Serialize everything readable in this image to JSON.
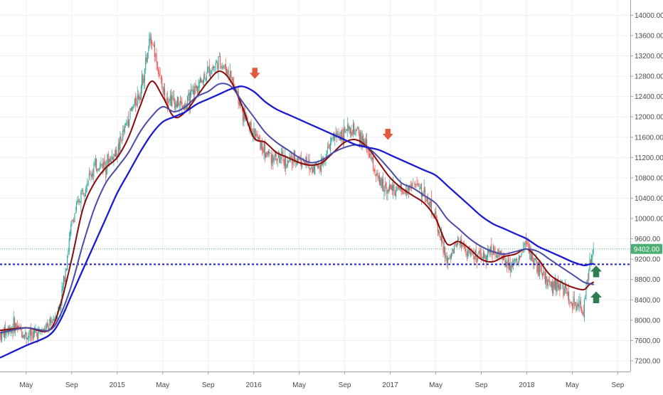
{
  "chart_data": {
    "type": "candlestick",
    "x_ticks": [
      {
        "label": "May",
        "x": 1.5
      },
      {
        "label": "Sep",
        "x": 5.5
      },
      {
        "label": "2015",
        "x": 9.5
      },
      {
        "label": "May",
        "x": 13.5
      },
      {
        "label": "Sep",
        "x": 17.5
      },
      {
        "label": "2016",
        "x": 21.5
      },
      {
        "label": "May",
        "x": 25.5
      },
      {
        "label": "Sep",
        "x": 29.5
      },
      {
        "label": "2017",
        "x": 33.5
      },
      {
        "label": "May",
        "x": 37.5
      },
      {
        "label": "Sep",
        "x": 41.5
      },
      {
        "label": "2018",
        "x": 45.5
      },
      {
        "label": "May",
        "x": 49.5
      },
      {
        "label": "Sep",
        "x": 53.5
      }
    ],
    "x_range": [
      -0.8,
      54.6
    ],
    "y_ticks": [
      7200,
      7600,
      8000,
      8400,
      8800,
      9200,
      9600,
      10000,
      10400,
      10800,
      11200,
      11600,
      12000,
      12400,
      12800,
      13200,
      13600,
      14000
    ],
    "y_tick_labels": [
      "7200.00",
      "7600.00",
      "8000.00",
      "8400.00",
      "8800.00",
      "9200.00",
      "9600.00",
      "10000.00",
      "10400.00",
      "10800.00",
      "11200.00",
      "11600.00",
      "12000.00",
      "12400.00",
      "12800.00",
      "13200.00",
      "13600.00",
      "14000.00"
    ],
    "y_range": [
      6990,
      14300
    ],
    "price_path": [
      [
        -0.8,
        7700
      ],
      [
        0.5,
        7900
      ],
      [
        1.5,
        7700
      ],
      [
        2.5,
        7750
      ],
      [
        3.5,
        7850
      ],
      [
        4.5,
        8300
      ],
      [
        5.5,
        9900
      ],
      [
        6.5,
        10600
      ],
      [
        7.5,
        11000
      ],
      [
        8.5,
        11100
      ],
      [
        9.5,
        11300
      ],
      [
        10.5,
        12000
      ],
      [
        11.5,
        12500
      ],
      [
        12.5,
        13600
      ],
      [
        13.5,
        12500
      ],
      [
        14.5,
        12300
      ],
      [
        15.5,
        12200
      ],
      [
        16.5,
        12600
      ],
      [
        17.5,
        12900
      ],
      [
        18.5,
        13100
      ],
      [
        19.5,
        12800
      ],
      [
        20.5,
        12100
      ],
      [
        21.5,
        11700
      ],
      [
        22.5,
        11300
      ],
      [
        23.5,
        11200
      ],
      [
        24.5,
        11100
      ],
      [
        25.5,
        11200
      ],
      [
        26.5,
        11000
      ],
      [
        27.5,
        11100
      ],
      [
        28.5,
        11600
      ],
      [
        29.5,
        11700
      ],
      [
        30.5,
        11700
      ],
      [
        31.5,
        11400
      ],
      [
        32.5,
        10700
      ],
      [
        33.5,
        10600
      ],
      [
        34.5,
        10500
      ],
      [
        35.5,
        10700
      ],
      [
        36.5,
        10500
      ],
      [
        37.5,
        10000
      ],
      [
        38.5,
        9100
      ],
      [
        39.5,
        9600
      ],
      [
        40.5,
        9300
      ],
      [
        41.5,
        9200
      ],
      [
        42.5,
        9400
      ],
      [
        43.5,
        9200
      ],
      [
        44.5,
        9100
      ],
      [
        45.5,
        9500
      ],
      [
        46.5,
        9000
      ],
      [
        47.5,
        8700
      ],
      [
        48.5,
        8700
      ],
      [
        49.5,
        8300
      ],
      [
        50.5,
        8200
      ],
      [
        51.0,
        9100
      ],
      [
        51.4,
        9402
      ]
    ],
    "series": [
      {
        "color": "#8b0a0a",
        "width": 2,
        "points": [
          [
            -0.8,
            7800
          ],
          [
            1.5,
            7850
          ],
          [
            3.5,
            7800
          ],
          [
            4.5,
            8300
          ],
          [
            5.5,
            9200
          ],
          [
            6.5,
            10200
          ],
          [
            7.5,
            10700
          ],
          [
            8.5,
            11000
          ],
          [
            9.5,
            11200
          ],
          [
            10.5,
            11600
          ],
          [
            11.5,
            12200
          ],
          [
            12.5,
            12700
          ],
          [
            13.5,
            12400
          ],
          [
            14.5,
            12000
          ],
          [
            15.5,
            12100
          ],
          [
            16.5,
            12400
          ],
          [
            17.5,
            12700
          ],
          [
            18.5,
            12900
          ],
          [
            19.5,
            12700
          ],
          [
            20.5,
            12200
          ],
          [
            21.5,
            11600
          ],
          [
            22.5,
            11500
          ],
          [
            23.5,
            11300
          ],
          [
            24.5,
            11200
          ],
          [
            25.5,
            11100
          ],
          [
            26.5,
            11050
          ],
          [
            27.5,
            11100
          ],
          [
            28.5,
            11300
          ],
          [
            29.5,
            11500
          ],
          [
            30.5,
            11550
          ],
          [
            31.5,
            11400
          ],
          [
            32.5,
            11100
          ],
          [
            33.5,
            10800
          ],
          [
            34.5,
            10600
          ],
          [
            35.5,
            10450
          ],
          [
            36.5,
            10300
          ],
          [
            37.5,
            10000
          ],
          [
            38.5,
            9500
          ],
          [
            39.5,
            9550
          ],
          [
            40.5,
            9400
          ],
          [
            41.5,
            9200
          ],
          [
            42.5,
            9150
          ],
          [
            43.5,
            9250
          ],
          [
            44.5,
            9300
          ],
          [
            45.5,
            9400
          ],
          [
            46.5,
            9200
          ],
          [
            47.5,
            8900
          ],
          [
            48.5,
            8750
          ],
          [
            49.5,
            8650
          ],
          [
            50.5,
            8600
          ],
          [
            51.0,
            8700
          ],
          [
            51.4,
            8750
          ]
        ]
      },
      {
        "color": "#4a4aa8",
        "width": 2,
        "points": [
          [
            -0.8,
            7750
          ],
          [
            1.5,
            7850
          ],
          [
            3.5,
            7800
          ],
          [
            4.5,
            8100
          ],
          [
            5.5,
            8700
          ],
          [
            6.5,
            9500
          ],
          [
            7.5,
            10200
          ],
          [
            8.5,
            10700
          ],
          [
            9.5,
            11000
          ],
          [
            10.5,
            11300
          ],
          [
            11.5,
            11700
          ],
          [
            12.5,
            12000
          ],
          [
            13.5,
            12200
          ],
          [
            14.5,
            12100
          ],
          [
            15.5,
            12200
          ],
          [
            16.5,
            12400
          ],
          [
            17.5,
            12500
          ],
          [
            18.5,
            12650
          ],
          [
            19.5,
            12600
          ],
          [
            20.5,
            12300
          ],
          [
            21.5,
            12000
          ],
          [
            22.5,
            11700
          ],
          [
            23.5,
            11500
          ],
          [
            24.5,
            11350
          ],
          [
            25.5,
            11200
          ],
          [
            26.5,
            11100
          ],
          [
            27.5,
            11150
          ],
          [
            28.5,
            11300
          ],
          [
            29.5,
            11400
          ],
          [
            30.5,
            11450
          ],
          [
            31.5,
            11400
          ],
          [
            32.5,
            11200
          ],
          [
            33.5,
            10950
          ],
          [
            34.5,
            10700
          ],
          [
            35.5,
            10600
          ],
          [
            36.5,
            10450
          ],
          [
            37.5,
            10300
          ],
          [
            38.5,
            10000
          ],
          [
            39.5,
            9800
          ],
          [
            40.5,
            9600
          ],
          [
            41.5,
            9450
          ],
          [
            42.5,
            9350
          ],
          [
            43.5,
            9300
          ],
          [
            44.5,
            9350
          ],
          [
            45.5,
            9400
          ],
          [
            46.5,
            9350
          ],
          [
            47.5,
            9200
          ],
          [
            48.5,
            9050
          ],
          [
            49.5,
            8900
          ],
          [
            50.5,
            8750
          ],
          [
            51.0,
            8720
          ],
          [
            51.4,
            8700
          ]
        ]
      },
      {
        "color": "#1a1ad0",
        "width": 2.3,
        "points": [
          [
            -0.8,
            7260
          ],
          [
            1.5,
            7500
          ],
          [
            3.5,
            7700
          ],
          [
            4.5,
            8000
          ],
          [
            5.5,
            8500
          ],
          [
            6.5,
            9000
          ],
          [
            7.5,
            9500
          ],
          [
            8.5,
            10000
          ],
          [
            9.5,
            10500
          ],
          [
            10.5,
            10900
          ],
          [
            11.5,
            11300
          ],
          [
            12.5,
            11650
          ],
          [
            13.5,
            11900
          ],
          [
            14.5,
            12000
          ],
          [
            15.5,
            12100
          ],
          [
            16.5,
            12250
          ],
          [
            17.5,
            12350
          ],
          [
            18.5,
            12450
          ],
          [
            19.5,
            12550
          ],
          [
            20.5,
            12600
          ],
          [
            21.5,
            12500
          ],
          [
            22.5,
            12300
          ],
          [
            23.5,
            12150
          ],
          [
            24.5,
            12050
          ],
          [
            25.5,
            11950
          ],
          [
            26.5,
            11850
          ],
          [
            27.5,
            11750
          ],
          [
            28.5,
            11650
          ],
          [
            29.5,
            11550
          ],
          [
            30.5,
            11450
          ],
          [
            31.5,
            11400
          ],
          [
            32.5,
            11350
          ],
          [
            33.5,
            11250
          ],
          [
            34.5,
            11150
          ],
          [
            35.5,
            11050
          ],
          [
            36.5,
            10950
          ],
          [
            37.5,
            10850
          ],
          [
            38.5,
            10650
          ],
          [
            39.5,
            10450
          ],
          [
            40.5,
            10250
          ],
          [
            41.5,
            10050
          ],
          [
            42.5,
            9900
          ],
          [
            43.5,
            9800
          ],
          [
            44.5,
            9700
          ],
          [
            45.5,
            9600
          ],
          [
            46.5,
            9450
          ],
          [
            47.5,
            9350
          ],
          [
            48.5,
            9250
          ],
          [
            49.5,
            9150
          ],
          [
            50.5,
            9080
          ],
          [
            51.0,
            9100
          ],
          [
            51.4,
            9110
          ]
        ]
      }
    ],
    "horizontal_lines": [
      {
        "y": 9100,
        "color": "#1a1ad0",
        "style": "dotted",
        "width": 2
      },
      {
        "y": 9402,
        "color": "#4caf72",
        "style": "dotted",
        "width": 1
      }
    ],
    "last_price": {
      "value": 9402,
      "label": "9402.00",
      "color": "#4caf72"
    },
    "markers": [
      {
        "type": "sell-arrow-down",
        "x": 21.6,
        "y": 12850,
        "color": "#e25a3f"
      },
      {
        "type": "sell-arrow-down",
        "x": 33.3,
        "y": 11650,
        "color": "#e25a3f"
      },
      {
        "type": "buy-arrow-up",
        "x": 51.6,
        "y": 8960,
        "color": "#2e7d4f"
      },
      {
        "type": "buy-arrow-up",
        "x": 51.6,
        "y": 8450,
        "color": "#2e7d4f"
      }
    ],
    "colors": {
      "up": "#26a69a",
      "down": "#ef5350",
      "grid": "#eef0f4",
      "axis_text": "#4a4a4a"
    },
    "grid": true
  }
}
